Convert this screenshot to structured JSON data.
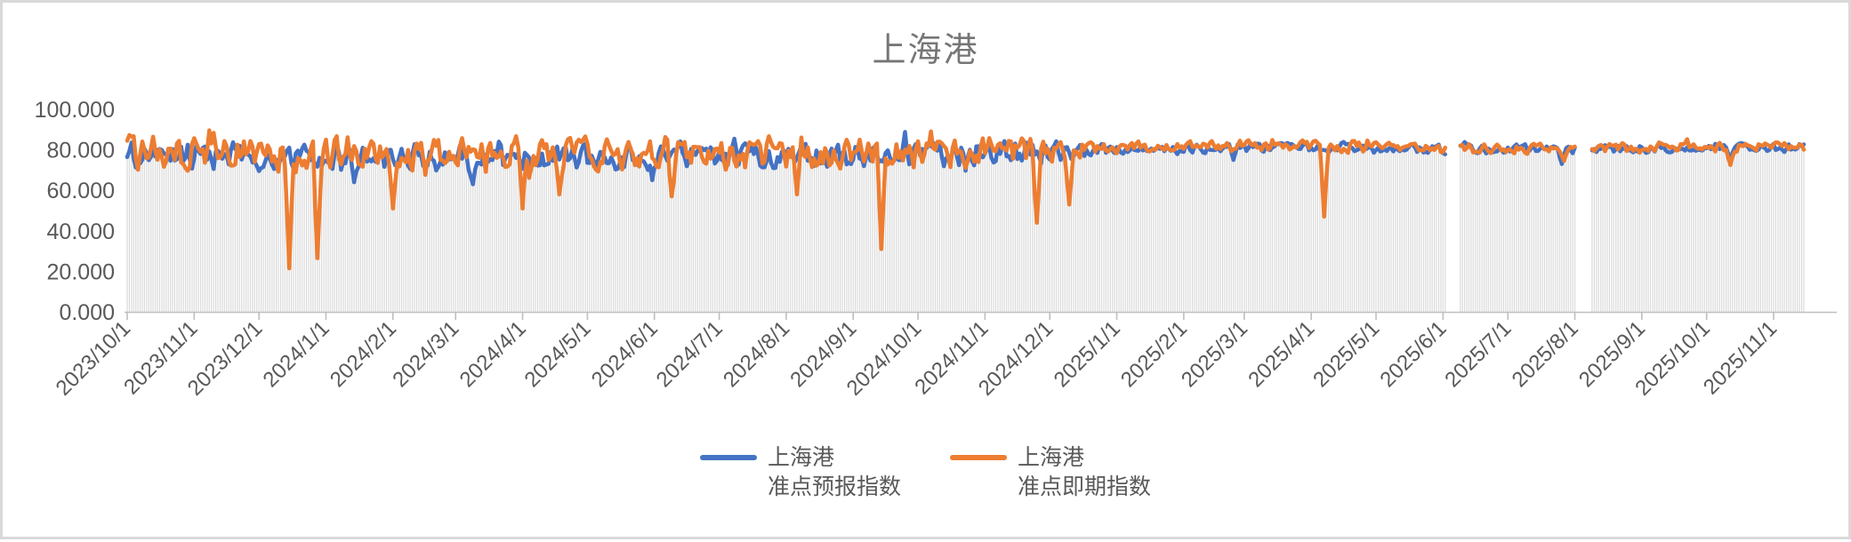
{
  "frame": {
    "border_color": "#D9D9D9",
    "background": "#FFFFFF"
  },
  "chart_data": {
    "type": "line",
    "title": "上海港",
    "title_color": "#767676",
    "legend_position": "bottom-center",
    "grid": "vertical-drop-lines-per-day",
    "x_axis": {
      "start_date": "2023/10/1",
      "end_date": "2025/11/15",
      "total_days": 777,
      "label_rotation_deg": -45,
      "tick_labels": [
        "2023/10/1",
        "2023/11/1",
        "2023/12/1",
        "2024/1/1",
        "2024/2/1",
        "2024/3/1",
        "2024/4/1",
        "2024/5/1",
        "2024/6/1",
        "2024/7/1",
        "2024/8/1",
        "2024/9/1",
        "2024/10/1",
        "2024/11/1",
        "2024/12/1",
        "2025/1/1",
        "2025/2/1",
        "2025/3/1",
        "2025/4/1",
        "2025/5/1",
        "2025/6/1",
        "2025/7/1",
        "2025/8/1",
        "2025/9/1",
        "2025/10/1",
        "2025/11/1"
      ],
      "tick_day_offsets": [
        0,
        31,
        61,
        92,
        123,
        152,
        183,
        213,
        244,
        274,
        305,
        336,
        366,
        397,
        427,
        458,
        489,
        517,
        548,
        578,
        609,
        639,
        670,
        701,
        731,
        762
      ]
    },
    "y_axis": {
      "min": 0,
      "max": 100,
      "step": 20,
      "tick_values": [
        0,
        20,
        40,
        60,
        80,
        100
      ],
      "tick_labels": [
        "0.000",
        "20.000",
        "40.000",
        "60.000",
        "80.000",
        "100.000"
      ]
    },
    "colors": {
      "axis_line": "#BFBFBF",
      "tick_text": "#595959",
      "drop_lines": "#DADADA"
    },
    "noise_seed": 20231001,
    "data_gaps": [
      [
        611,
        616
      ],
      [
        671,
        677
      ]
    ],
    "data_gap_dates": [
      [
        "2025/6/3",
        "2025/6/8"
      ],
      [
        "2025/8/2",
        "2025/8/8"
      ]
    ],
    "series": [
      {
        "name": "上海港 准点预报指数",
        "legend_label": "上海港\n准点预报指数",
        "color": "#4472C4",
        "baseline_anchors": [
          [
            0,
            77.5
          ],
          [
            60,
            76
          ],
          [
            120,
            75.5
          ],
          [
            180,
            76
          ],
          [
            240,
            76.5
          ],
          [
            300,
            77
          ],
          [
            360,
            77.5
          ],
          [
            420,
            79
          ],
          [
            445,
            80
          ],
          [
            470,
            80.5
          ],
          [
            520,
            81
          ],
          [
            560,
            81
          ],
          [
            610,
            80
          ],
          [
            640,
            80.5
          ],
          [
            680,
            80
          ],
          [
            720,
            81
          ],
          [
            776,
            81
          ]
        ],
        "noise_amplitude": [
          [
            0,
            6.2
          ],
          [
            420,
            6.2
          ],
          [
            445,
            3.5
          ],
          [
            460,
            2.4
          ],
          [
            776,
            2.1
          ]
        ],
        "anomaly_points": [
          [
            105,
            64
          ],
          [
            160,
            63
          ],
          [
            243,
            65
          ],
          [
            512,
            75
          ],
          [
            664,
            73
          ],
          [
            742,
            73.5
          ]
        ]
      },
      {
        "name": "上海港 准点即期指数",
        "legend_label": "上海港\n准点即期指数",
        "color": "#ED7D31",
        "baseline_anchors": [
          [
            0,
            79
          ],
          [
            60,
            78
          ],
          [
            120,
            77
          ],
          [
            180,
            77.5
          ],
          [
            240,
            78
          ],
          [
            300,
            78.5
          ],
          [
            360,
            78.5
          ],
          [
            420,
            80
          ],
          [
            445,
            81
          ],
          [
            470,
            81.5
          ],
          [
            520,
            82
          ],
          [
            560,
            81.5
          ],
          [
            610,
            80.5
          ],
          [
            640,
            81
          ],
          [
            680,
            80.5
          ],
          [
            720,
            81.5
          ],
          [
            776,
            81.5
          ]
        ],
        "noise_amplitude": [
          [
            0,
            7.6
          ],
          [
            420,
            7
          ],
          [
            445,
            3.8
          ],
          [
            460,
            2.6
          ],
          [
            776,
            2.2
          ]
        ],
        "anomaly_points": [
          [
            75,
            21.5
          ],
          [
            88,
            26.5
          ],
          [
            123,
            51
          ],
          [
            183,
            51
          ],
          [
            200,
            58
          ],
          [
            252,
            57
          ],
          [
            310,
            58
          ],
          [
            349,
            31
          ],
          [
            421,
            44
          ],
          [
            436,
            53
          ],
          [
            554,
            47
          ],
          [
            665,
            74.5
          ],
          [
            742,
            72.5
          ]
        ]
      }
    ]
  }
}
